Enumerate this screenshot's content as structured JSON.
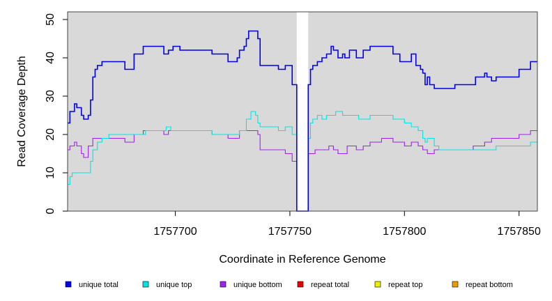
{
  "chart_data": {
    "type": "line",
    "title": "",
    "xlabel": "Coordinate in Reference Genome",
    "ylabel": "Read Coverage Depth",
    "xlim": [
      1757653,
      1757858
    ],
    "ylim": [
      0,
      52
    ],
    "x_ticks": [
      {
        "value": 1757700,
        "label": "1757700"
      },
      {
        "value": 1757750,
        "label": "1757750"
      },
      {
        "value": 1757800,
        "label": "1757800"
      },
      {
        "value": 1757850,
        "label": "1757850"
      }
    ],
    "y_ticks": [
      {
        "value": 0,
        "label": "0"
      },
      {
        "value": 10,
        "label": "10"
      },
      {
        "value": 20,
        "label": "20"
      },
      {
        "value": 30,
        "label": "30"
      },
      {
        "value": 40,
        "label": "40"
      },
      {
        "value": 50,
        "label": "50"
      }
    ],
    "background_color": "#d9d9d9",
    "gap_region": [
      1757753,
      1757758
    ],
    "legend_position": "bottom",
    "series": [
      {
        "name": "unique total",
        "color": "#0000ee",
        "x": [
          1757653,
          1757654,
          1757656,
          1757657,
          1757659,
          1757660,
          1757662,
          1757663,
          1757664,
          1757665,
          1757666,
          1757668,
          1757670,
          1757672,
          1757678,
          1757682,
          1757686,
          1757692,
          1757695,
          1757697,
          1757699,
          1757702,
          1757716,
          1757723,
          1757727,
          1757728,
          1757730,
          1757731,
          1757732,
          1757734,
          1757736,
          1757737,
          1757745,
          1757748,
          1757751,
          1757753,
          1757754,
          1757758,
          1757759,
          1757760,
          1757762,
          1757764,
          1757766,
          1757768,
          1757769,
          1757771,
          1757773,
          1757774,
          1757776,
          1757779,
          1757782,
          1757785,
          1757795,
          1757798,
          1757803,
          1757805,
          1757807,
          1757808,
          1757809,
          1757810,
          1757811,
          1757813,
          1757815,
          1757822,
          1757831,
          1757834,
          1757835,
          1757836,
          1757838,
          1757840,
          1757850,
          1757855,
          1757858
        ],
        "y": [
          23,
          26,
          28,
          27,
          25,
          24,
          25,
          29,
          35,
          37,
          38,
          39,
          39,
          39,
          37,
          41,
          43,
          43,
          41,
          42,
          43,
          42,
          41,
          39,
          40,
          42,
          43,
          45,
          47,
          47,
          45,
          38,
          37,
          38,
          33,
          0,
          0,
          33,
          37,
          38,
          39,
          40,
          41,
          43,
          42,
          40,
          41,
          40,
          42,
          40,
          42,
          43,
          41,
          39,
          41,
          38,
          37,
          36,
          33,
          35,
          33,
          32,
          32,
          33,
          35,
          35,
          36,
          35,
          34,
          35,
          37,
          39,
          39
        ]
      },
      {
        "name": "unique top",
        "color": "#00e5e5",
        "x": [
          1757653,
          1757654,
          1757655,
          1757658,
          1757663,
          1757664,
          1757666,
          1757668,
          1757671,
          1757678,
          1757683,
          1757687,
          1757693,
          1757696,
          1757698,
          1757700,
          1757716,
          1757723,
          1757728,
          1757731,
          1757733,
          1757735,
          1757736,
          1757737,
          1757745,
          1757748,
          1757751,
          1757753,
          1757754,
          1757758,
          1757759,
          1757760,
          1757762,
          1757764,
          1757766,
          1757768,
          1757770,
          1757773,
          1757780,
          1757785,
          1757795,
          1757800,
          1757803,
          1757806,
          1757808,
          1757809,
          1757810,
          1757813,
          1757815,
          1757822,
          1757832,
          1757835,
          1757838,
          1757840,
          1757850,
          1757855,
          1757858
        ],
        "y": [
          7,
          9,
          10,
          10,
          13,
          16,
          18,
          19,
          20,
          20,
          20,
          21,
          21,
          22,
          21,
          21,
          20,
          20,
          21,
          24,
          26,
          25,
          23,
          22,
          21,
          22,
          20,
          0,
          0,
          19,
          23,
          24,
          25,
          24,
          25,
          25,
          26,
          25,
          24,
          25,
          24,
          23,
          22,
          21,
          19,
          18,
          19,
          17,
          16,
          16,
          16,
          16,
          16,
          17,
          17,
          18,
          18
        ]
      },
      {
        "name": "unique bottom",
        "color": "#a020f0",
        "x": [
          1757653,
          1757654,
          1757656,
          1757657,
          1757659,
          1757660,
          1757662,
          1757664,
          1757666,
          1757668,
          1757672,
          1757678,
          1757682,
          1757686,
          1757692,
          1757695,
          1757697,
          1757699,
          1757702,
          1757716,
          1757723,
          1757728,
          1757734,
          1757736,
          1757737,
          1757745,
          1757748,
          1757751,
          1757753,
          1757754,
          1757758,
          1757761,
          1757764,
          1757767,
          1757769,
          1757771,
          1757775,
          1757779,
          1757782,
          1757785,
          1757790,
          1757795,
          1757800,
          1757803,
          1757806,
          1757808,
          1757809,
          1757810,
          1757813,
          1757815,
          1757822,
          1757830,
          1757835,
          1757836,
          1757838,
          1757840,
          1757845,
          1757850,
          1757855,
          1757858
        ],
        "y": [
          16,
          17,
          18,
          17,
          15,
          14,
          17,
          19,
          19,
          19,
          19,
          18,
          20,
          21,
          21,
          20,
          21,
          21,
          21,
          20,
          19,
          21,
          21,
          20,
          16,
          16,
          15,
          13,
          0,
          0,
          15,
          16,
          16,
          17,
          16,
          15,
          17,
          16,
          17,
          18,
          19,
          18,
          17,
          18,
          17,
          16,
          16,
          15,
          16,
          16,
          16,
          17,
          18,
          18,
          19,
          19,
          19,
          20,
          21,
          21
        ]
      },
      {
        "name": "repeat total",
        "color": "#ee0000",
        "x": [
          1757653,
          1757858
        ],
        "y": [
          0,
          0
        ]
      },
      {
        "name": "repeat top",
        "color": "#eeee00",
        "x": [
          1757653,
          1757858
        ],
        "y": [
          0,
          0
        ]
      },
      {
        "name": "repeat bottom",
        "color": "#ee9a00",
        "x": [
          1757653,
          1757858
        ],
        "y": [
          0,
          0
        ]
      }
    ]
  }
}
